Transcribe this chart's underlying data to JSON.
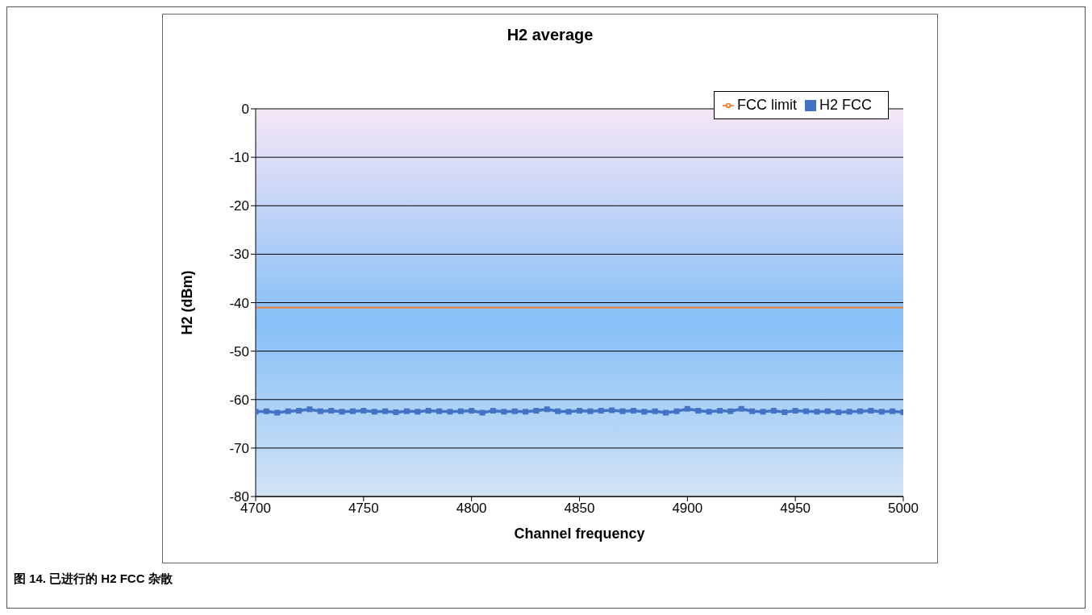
{
  "chart_data": {
    "type": "line",
    "title": "H2 average",
    "xlabel": "Channel frequency",
    "ylabel": "H2 (dBm)",
    "annotations": [
      "图 14. 已进行的 H2 FCC 杂散"
    ],
    "x": [
      4700,
      4705,
      4710,
      4715,
      4720,
      4725,
      4730,
      4735,
      4740,
      4745,
      4750,
      4755,
      4760,
      4765,
      4770,
      4775,
      4780,
      4785,
      4790,
      4795,
      4800,
      4805,
      4810,
      4815,
      4820,
      4825,
      4830,
      4835,
      4840,
      4845,
      4850,
      4855,
      4860,
      4865,
      4870,
      4875,
      4880,
      4885,
      4890,
      4895,
      4900,
      4905,
      4910,
      4915,
      4920,
      4925,
      4930,
      4935,
      4940,
      4945,
      4950,
      4955,
      4960,
      4965,
      4970,
      4975,
      4980,
      4985,
      4990,
      4995,
      5000
    ],
    "series": [
      {
        "name": "H2 FCC",
        "color": "#4472c4",
        "marker": "square",
        "values": [
          -62.5,
          -62.4,
          -62.7,
          -62.4,
          -62.3,
          -62.0,
          -62.4,
          -62.3,
          -62.5,
          -62.4,
          -62.3,
          -62.5,
          -62.4,
          -62.6,
          -62.4,
          -62.5,
          -62.3,
          -62.4,
          -62.5,
          -62.4,
          -62.3,
          -62.7,
          -62.3,
          -62.5,
          -62.4,
          -62.5,
          -62.3,
          -62.0,
          -62.4,
          -62.5,
          -62.3,
          -62.4,
          -62.3,
          -62.2,
          -62.4,
          -62.3,
          -62.5,
          -62.4,
          -62.7,
          -62.4,
          -61.9,
          -62.3,
          -62.5,
          -62.3,
          -62.4,
          -61.9,
          -62.4,
          -62.5,
          -62.3,
          -62.6,
          -62.3,
          -62.4,
          -62.5,
          -62.4,
          -62.6,
          -62.5,
          -62.4,
          -62.3,
          -62.5,
          -62.4,
          -62.6
        ]
      },
      {
        "name": "FCC limit",
        "color": "#ed7d31",
        "marker": "none",
        "x": [
          4700,
          5000
        ],
        "values": [
          -41,
          -41
        ]
      }
    ],
    "xlim": [
      4700,
      5000
    ],
    "xticks": [
      4700,
      4750,
      4800,
      4850,
      4900,
      4950,
      5000
    ],
    "ylim": [
      -80,
      0
    ],
    "yticks": [
      -80,
      -70,
      -60,
      -50,
      -40,
      -30,
      -20,
      -10,
      0
    ],
    "grid": "y",
    "legend": "top right"
  }
}
